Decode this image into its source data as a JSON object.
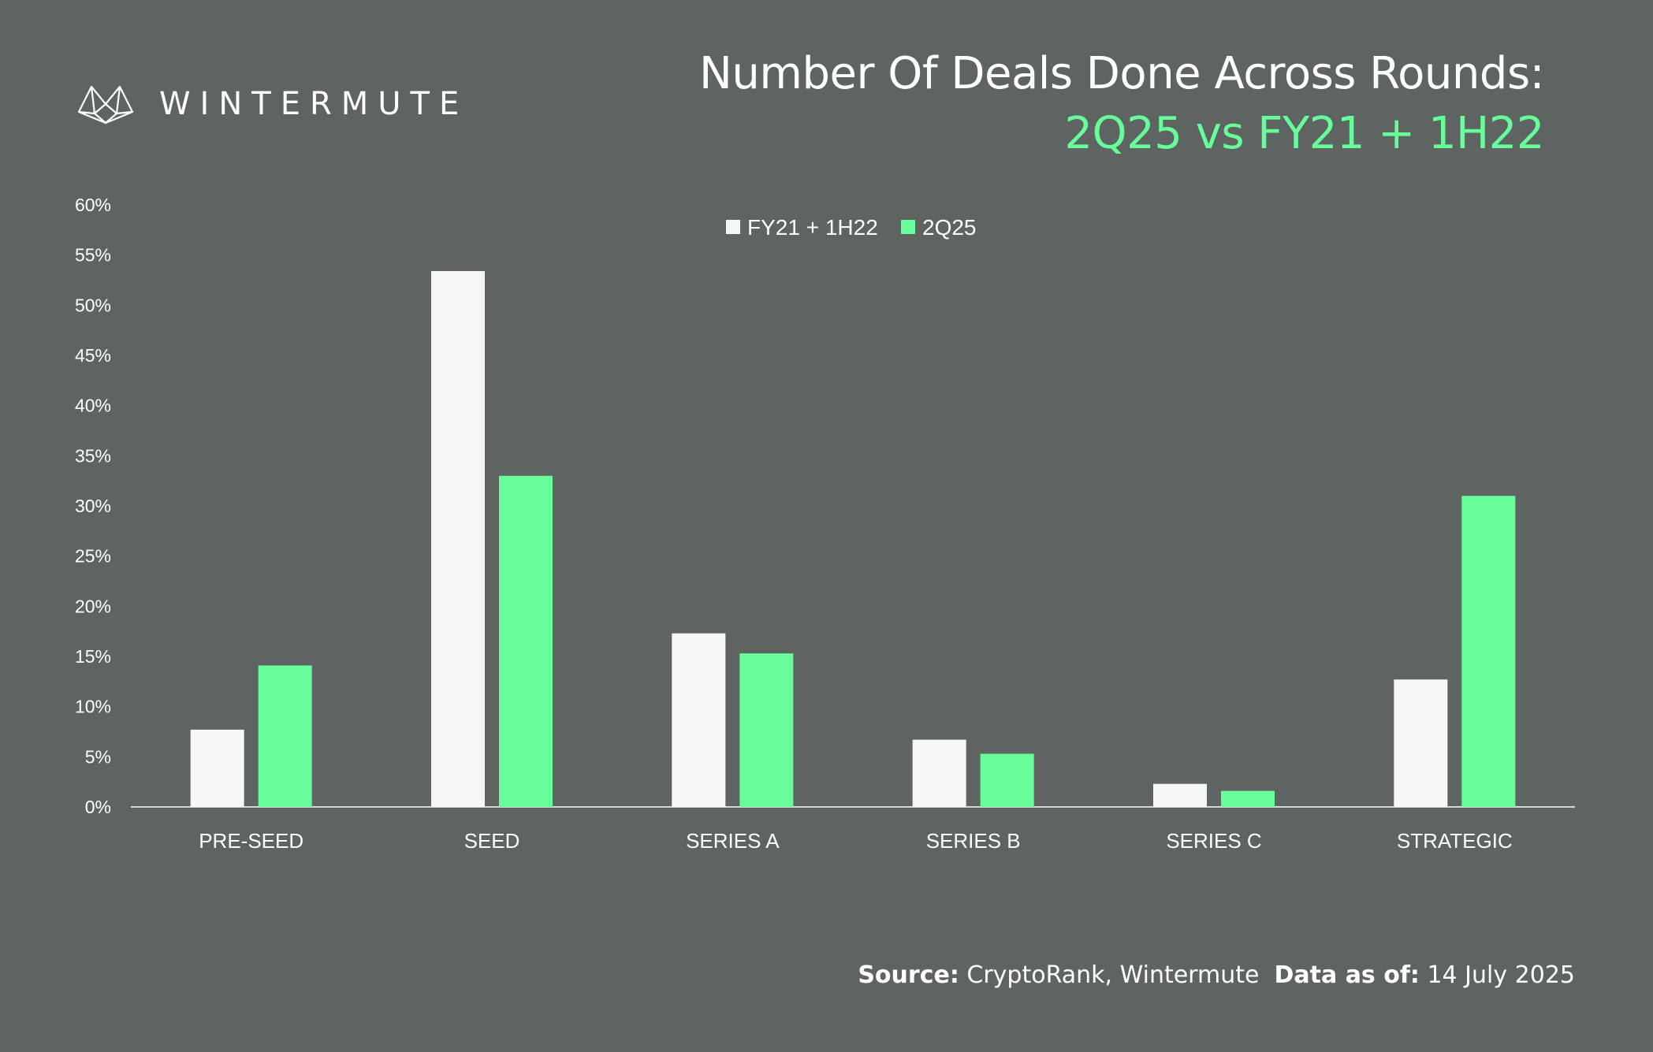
{
  "brand": {
    "name": "WINTERMUTE",
    "logo_icon": "wintermute-logo-icon"
  },
  "colors": {
    "background": "#5e6461",
    "series1": "#f7f7f7",
    "series2": "#66fd9a",
    "accent": "#66fd9a"
  },
  "footer": {
    "source_label": "Source:",
    "source_value": "CryptoRank, Wintermute",
    "date_label": "Data as of:",
    "date_value": "14 July 2025"
  },
  "chart_data": {
    "type": "bar",
    "title": "Number Of Deals Done Across Rounds:",
    "subtitle": "2Q25 vs FY21 + 1H22",
    "categories": [
      "PRE-SEED",
      "SEED",
      "SERIES A",
      "SERIES B",
      "SERIES C",
      "STRATEGIC"
    ],
    "series": [
      {
        "name": "FY21 + 1H22",
        "color": "#f7f7f7",
        "values": [
          7.7,
          53.4,
          17.3,
          6.7,
          2.3,
          12.7
        ]
      },
      {
        "name": "2Q25",
        "color": "#66fd9a",
        "values": [
          14.1,
          33.0,
          15.3,
          5.3,
          1.6,
          31.0
        ]
      }
    ],
    "y_ticks": [
      "0%",
      "5%",
      "10%",
      "15%",
      "20%",
      "25%",
      "30%",
      "35%",
      "40%",
      "45%",
      "50%",
      "55%",
      "60%"
    ],
    "ylim": [
      0,
      60
    ],
    "grid": false,
    "legend_position": "top-center"
  }
}
